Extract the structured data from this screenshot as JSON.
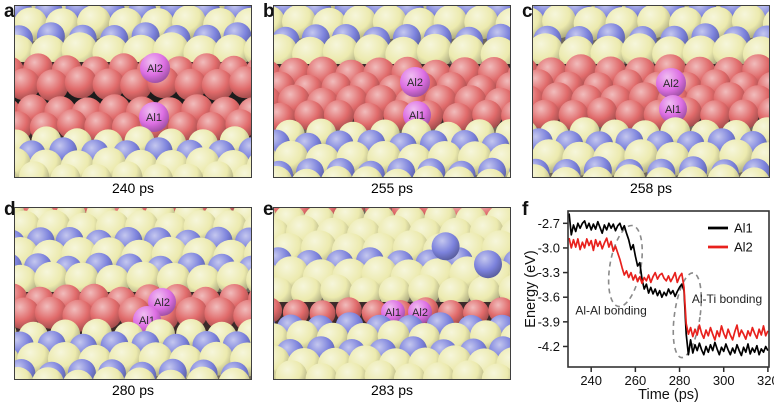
{
  "panels": [
    {
      "id": "a",
      "letter": "a",
      "caption": "240 ps",
      "atoms": [
        {
          "label": "Al2"
        },
        {
          "label": "Al1"
        }
      ]
    },
    {
      "id": "b",
      "letter": "b",
      "caption": "255 ps",
      "atoms": [
        {
          "label": "Al2"
        },
        {
          "label": "Al1"
        }
      ]
    },
    {
      "id": "c",
      "letter": "c",
      "caption": "258 ps",
      "atoms": [
        {
          "label": "Al2"
        },
        {
          "label": "Al1"
        }
      ]
    },
    {
      "id": "d",
      "letter": "d",
      "caption": "280 ps",
      "atoms": [
        {
          "label": "Al2"
        },
        {
          "label": "Al1"
        }
      ]
    },
    {
      "id": "e",
      "letter": "e",
      "caption": "283 ps",
      "atoms": [
        {
          "label": "Al1"
        },
        {
          "label": "Al2"
        }
      ]
    }
  ],
  "chart": {
    "letter": "f"
  },
  "colors": {
    "background": "#ffffff",
    "panel_border": "#3f3f3f",
    "snapshot_background": "#6e675c",
    "yellow_sphere": "#eceaae",
    "blue_sphere": "#7c82dc",
    "red_sphere": "#e06a6a",
    "magenta_sphere": "#dd6fe3",
    "vacuum_gap_black": "#1c1c1c",
    "crevice_shadow": "#3c2a2a",
    "atom_label_text": "#2a2a2a",
    "al1_series": "#000000",
    "al2_series": "#e8211d",
    "annotation_gray": "#8a8a8a",
    "axis_color": "#2b2b2b"
  },
  "chart_data": {
    "type": "line",
    "title": "",
    "xlabel": "Time (ps)",
    "ylabel": "Energy (eV)",
    "xlim": [
      229.5,
      320.5
    ],
    "ylim": [
      -4.45,
      -2.55
    ],
    "xticks": [
      240,
      260,
      280,
      300,
      320
    ],
    "yticks": [
      -2.7,
      -3.0,
      -3.3,
      -3.6,
      -3.9,
      -4.2
    ],
    "grid": false,
    "legend_position": "top-right",
    "x": [
      230,
      231,
      232,
      233,
      234,
      235,
      236,
      237,
      238,
      239,
      240,
      241,
      242,
      243,
      244,
      245,
      246,
      247,
      248,
      249,
      250,
      251,
      252,
      253,
      254,
      255,
      256,
      257,
      258,
      259,
      260,
      261,
      262,
      263,
      264,
      265,
      266,
      267,
      268,
      269,
      270,
      271,
      272,
      273,
      274,
      275,
      276,
      277,
      278,
      279,
      280,
      281,
      282,
      283,
      284,
      285,
      286,
      287,
      288,
      289,
      290,
      291,
      292,
      293,
      294,
      295,
      296,
      297,
      298,
      299,
      300,
      301,
      302,
      303,
      304,
      305,
      306,
      307,
      308,
      309,
      310,
      311,
      312,
      313,
      314,
      315,
      316,
      317,
      318,
      319,
      320
    ],
    "series": [
      {
        "name": "Al1",
        "color": "#000000",
        "y": [
          -2.58,
          -2.84,
          -2.72,
          -2.8,
          -2.7,
          -2.76,
          -2.7,
          -2.67,
          -2.76,
          -2.7,
          -2.78,
          -2.71,
          -2.77,
          -2.68,
          -2.75,
          -2.82,
          -2.72,
          -2.78,
          -2.7,
          -2.76,
          -2.71,
          -2.79,
          -2.73,
          -2.7,
          -2.78,
          -2.73,
          -2.82,
          -2.9,
          -3.02,
          -2.96,
          -3.1,
          -3.22,
          -3.18,
          -3.38,
          -3.5,
          -3.44,
          -3.55,
          -3.48,
          -3.56,
          -3.5,
          -3.58,
          -3.52,
          -3.6,
          -3.54,
          -3.58,
          -3.5,
          -3.56,
          -3.52,
          -3.59,
          -3.53,
          -3.48,
          -3.44,
          -3.52,
          -4.05,
          -4.3,
          -4.12,
          -4.28,
          -4.18,
          -4.25,
          -4.16,
          -4.24,
          -4.3,
          -4.2,
          -4.27,
          -4.18,
          -4.25,
          -4.15,
          -4.23,
          -4.3,
          -4.21,
          -4.26,
          -4.17,
          -4.24,
          -4.3,
          -4.22,
          -4.28,
          -4.18,
          -4.25,
          -4.31,
          -4.21,
          -4.27,
          -4.17,
          -4.29,
          -4.22,
          -4.27,
          -4.19,
          -4.3,
          -4.23,
          -4.27,
          -4.2,
          -4.25
        ]
      },
      {
        "name": "Al2",
        "color": "#e8211d",
        "y": [
          -2.88,
          -3.0,
          -2.9,
          -2.99,
          -2.89,
          -3.02,
          -2.93,
          -3.0,
          -2.89,
          -2.97,
          -2.91,
          -3.03,
          -2.9,
          -2.98,
          -2.92,
          -3.01,
          -2.94,
          -2.88,
          -2.99,
          -2.92,
          -3.04,
          -2.98,
          -3.06,
          -3.14,
          -3.24,
          -3.33,
          -3.28,
          -3.36,
          -3.3,
          -3.39,
          -3.33,
          -3.41,
          -3.35,
          -3.43,
          -3.36,
          -3.4,
          -3.33,
          -3.42,
          -3.35,
          -3.3,
          -3.38,
          -3.33,
          -3.31,
          -3.37,
          -3.4,
          -3.34,
          -3.41,
          -3.36,
          -3.3,
          -3.42,
          -3.35,
          -3.31,
          -3.48,
          -3.92,
          -4.05,
          -3.97,
          -4.08,
          -3.99,
          -4.06,
          -3.94,
          -4.04,
          -4.1,
          -4.0,
          -4.07,
          -3.97,
          -4.05,
          -4.12,
          -4.01,
          -4.08,
          -3.95,
          -4.04,
          -4.1,
          -3.99,
          -4.06,
          -4.12,
          -4.02,
          -3.94,
          -4.08,
          -4.0,
          -4.05,
          -4.11,
          -4.01,
          -4.07,
          -3.97,
          -4.04,
          -4.1,
          -3.99,
          -4.06,
          -3.95,
          -4.07,
          -4.01
        ]
      }
    ],
    "annotations": [
      {
        "text": "Al-Al bonding",
        "x": 249,
        "y": -3.76,
        "ellipse": {
          "cx": 255.5,
          "cy": -3.22,
          "rx": 7.0,
          "ry": 0.5,
          "rotate": 10
        }
      },
      {
        "text": "Al-Ti bonding",
        "x": 301.5,
        "y": -3.62,
        "ellipse": {
          "cx": 283.5,
          "cy": -3.82,
          "rx": 5.8,
          "ry": 0.52,
          "rotate": 8
        }
      }
    ]
  }
}
